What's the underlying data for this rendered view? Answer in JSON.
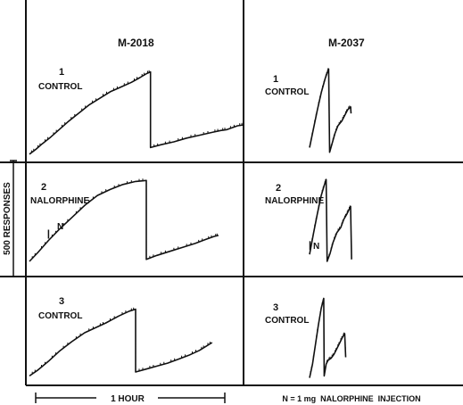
{
  "chart_data": {
    "type": "line",
    "subjects": [
      {
        "name": "M-2018",
        "sessions": [
          {
            "panel_number": "1",
            "condition": "CONTROL",
            "cumulative_records": [
              [
                [
                  0,
                  0.03
                ],
                [
                  3,
                  0.08
                ],
                [
                  6,
                  0.14
                ],
                [
                  10,
                  0.21
                ],
                [
                  14,
                  0.29
                ],
                [
                  18,
                  0.37
                ],
                [
                  23,
                  0.46
                ],
                [
                  28,
                  0.55
                ],
                [
                  33,
                  0.62
                ],
                [
                  38,
                  0.69
                ],
                [
                  43,
                  0.74
                ],
                [
                  48,
                  0.79
                ],
                [
                  52,
                  0.84
                ],
                [
                  55,
                  0.88
                ],
                [
                  57,
                  0.9
                ]
              ],
              [
                [
                  57,
                  0.1
                ],
                [
                  62,
                  0.13
                ],
                [
                  68,
                  0.16
                ],
                [
                  74,
                  0.2
                ],
                [
                  80,
                  0.23
                ],
                [
                  86,
                  0.26
                ],
                [
                  90,
                  0.28
                ],
                [
                  93,
                  0.29
                ],
                [
                  98,
                  0.33
                ],
                [
                  101,
                  0.34
                ]
              ]
            ]
          },
          {
            "panel_number": "2",
            "condition": "NALORPHINE",
            "injection_marker": {
              "label": "N",
              "x": 9
            },
            "cumulative_records": [
              [
                [
                  0,
                  0.08
                ],
                [
                  4,
                  0.17
                ],
                [
                  9,
                  0.29
                ],
                [
                  14,
                  0.4
                ],
                [
                  20,
                  0.52
                ],
                [
                  26,
                  0.64
                ],
                [
                  32,
                  0.74
                ],
                [
                  38,
                  0.8
                ],
                [
                  44,
                  0.85
                ],
                [
                  50,
                  0.88
                ],
                [
                  55,
                  0.89
                ]
              ],
              [
                [
                  55,
                  0.1
                ],
                [
                  60,
                  0.14
                ],
                [
                  66,
                  0.18
                ],
                [
                  72,
                  0.22
                ],
                [
                  78,
                  0.26
                ],
                [
                  83,
                  0.3
                ],
                [
                  87,
                  0.33
                ],
                [
                  89,
                  0.34
                ]
              ]
            ]
          },
          {
            "panel_number": "3",
            "condition": "CONTROL",
            "cumulative_records": [
              [
                [
                  0,
                  0.06
                ],
                [
                  4,
                  0.12
                ],
                [
                  9,
                  0.21
                ],
                [
                  14,
                  0.31
                ],
                [
                  20,
                  0.41
                ],
                [
                  26,
                  0.5
                ],
                [
                  32,
                  0.56
                ],
                [
                  36,
                  0.6
                ],
                [
                  42,
                  0.67
                ],
                [
                  47,
                  0.72
                ],
                [
                  50,
                  0.74
                ]
              ],
              [
                [
                  50,
                  0.1
                ],
                [
                  55,
                  0.13
                ],
                [
                  60,
                  0.16
                ],
                [
                  65,
                  0.19
                ],
                [
                  70,
                  0.23
                ],
                [
                  75,
                  0.27
                ],
                [
                  80,
                  0.32
                ],
                [
                  83,
                  0.36
                ],
                [
                  86,
                  0.4
                ]
              ]
            ]
          }
        ]
      },
      {
        "name": "M-2037",
        "sessions": [
          {
            "panel_number": "1",
            "condition": "CONTROL",
            "cumulative_records": [
              [
                [
                  0,
                  0.1
                ],
                [
                  4,
                  0.3
                ],
                [
                  8,
                  0.5
                ],
                [
                  12,
                  0.68
                ],
                [
                  16,
                  0.83
                ],
                [
                  18,
                  0.89
                ],
                [
                  19.5,
                  0.93
                ]
              ],
              [
                [
                  20.5,
                  0.05
                ],
                [
                  23,
                  0.14
                ],
                [
                  26,
                  0.25
                ],
                [
                  29,
                  0.33
                ],
                [
                  33,
                  0.38
                ],
                [
                  36,
                  0.44
                ],
                [
                  39,
                  0.5
                ],
                [
                  42,
                  0.53
                ],
                [
                  42.5,
                  0.46
                ]
              ]
            ]
          },
          {
            "panel_number": "2",
            "condition": "NALORPHINE",
            "injection_marker": {
              "label": "N",
              "x": 0.5
            },
            "cumulative_records": [
              [
                [
                  0,
                  0.15
                ],
                [
                  4,
                  0.36
                ],
                [
                  8,
                  0.56
                ],
                [
                  12,
                  0.74
                ],
                [
                  15,
                  0.84
                ],
                [
                  17,
                  0.9
                ]
              ],
              [
                [
                  18,
                  0.08
                ],
                [
                  21,
                  0.16
                ],
                [
                  24,
                  0.27
                ],
                [
                  28,
                  0.37
                ],
                [
                  32,
                  0.42
                ],
                [
                  35,
                  0.5
                ],
                [
                  38,
                  0.55
                ],
                [
                  40,
                  0.59
                ],
                [
                  42,
                  0.63
                ],
                [
                  43,
                  0.1
                ]
              ]
            ]
          },
          {
            "panel_number": "3",
            "condition": "CONTROL",
            "cumulative_records": [
              [
                [
                  0,
                  0.04
                ],
                [
                  3,
                  0.18
                ],
                [
                  6,
                  0.38
                ],
                [
                  9,
                  0.58
                ],
                [
                  12,
                  0.75
                ],
                [
                  14.5,
                  0.85
                ]
              ],
              [
                [
                  15,
                  0.06
                ],
                [
                  17,
                  0.18
                ],
                [
                  19,
                  0.22
                ],
                [
                  22,
                  0.24
                ],
                [
                  25,
                  0.28
                ],
                [
                  28,
                  0.34
                ],
                [
                  31,
                  0.4
                ],
                [
                  34,
                  0.46
                ],
                [
                  36,
                  0.49
                ],
                [
                  37,
                  0.25
                ]
              ]
            ]
          }
        ]
      }
    ],
    "x_range": [
      0,
      105
    ],
    "y_range": [
      0,
      1
    ],
    "scale_bar_y_label": "500 RESPONSES",
    "scale_bar_x_label": "1 HOUR",
    "footnote": "N = 1 mg  NALORPHINE  INJECTION",
    "line_color": "#111111",
    "background_color": "#ffffff",
    "grid": false
  }
}
